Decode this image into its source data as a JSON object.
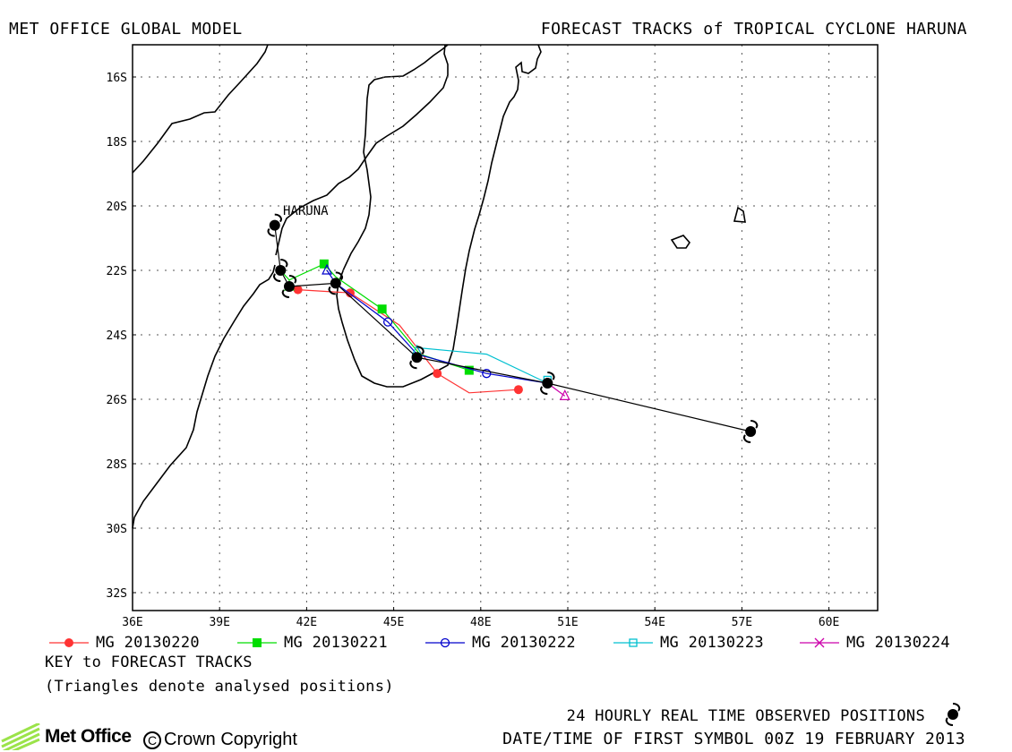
{
  "header": {
    "left_title": "MET OFFICE GLOBAL MODEL",
    "right_title": "FORECAST TRACKS of TROPICAL CYCLONE HARUNA"
  },
  "map": {
    "storm_label": "HARUNA",
    "lon_ticks": [
      "36E",
      "39E",
      "42E",
      "45E",
      "48E",
      "51E",
      "54E",
      "57E",
      "60E"
    ],
    "lat_ticks": [
      "16S",
      "18S",
      "20S",
      "22S",
      "24S",
      "26S",
      "28S",
      "30S",
      "32S"
    ],
    "colors": {
      "land_outline": "#000000",
      "grid": "#555555"
    }
  },
  "legend": {
    "items": [
      {
        "label": "MG 20130220",
        "marker": "filled-circle",
        "color": "#ff3333"
      },
      {
        "label": "MG 20130221",
        "marker": "filled-square",
        "color": "#00dd00"
      },
      {
        "label": "MG 20130222",
        "marker": "open-circle",
        "color": "#0000cc"
      },
      {
        "label": "MG 20130223",
        "marker": "open-square",
        "color": "#00c0d0"
      },
      {
        "label": "MG 20130224",
        "marker": "cross",
        "color": "#cc00aa"
      }
    ],
    "key_title": "KEY to FORECAST TRACKS",
    "key_note": "(Triangles denote analysed positions)"
  },
  "footer": {
    "observed_label": "24 HOURLY REAL TIME OBSERVED POSITIONS",
    "first_symbol_time": "DATE/TIME OF FIRST SYMBOL 00Z 19 FEBRUARY 2013",
    "logo_text": "Met Office",
    "copyright": "Crown Copyright"
  },
  "tracks": {
    "observed": [
      [
        40.9,
        -20.6
      ],
      [
        41.1,
        -22.0
      ],
      [
        41.4,
        -22.5
      ],
      [
        43.0,
        -22.4
      ],
      [
        45.8,
        -24.7
      ],
      [
        50.3,
        -25.5
      ],
      [
        57.3,
        -27.0
      ]
    ],
    "forecasts": [
      {
        "name": "MG 20130220",
        "color": "#ff3333",
        "marker": "filled-circle",
        "points": [
          [
            41.4,
            -22.5
          ],
          [
            41.7,
            -22.6
          ],
          [
            43.5,
            -22.7
          ],
          [
            45.2,
            -23.7
          ],
          [
            46.5,
            -25.2
          ],
          [
            47.6,
            -25.8
          ],
          [
            49.3,
            -25.7
          ]
        ],
        "marker_points": [
          [
            41.7,
            -22.6
          ],
          [
            43.5,
            -22.7
          ],
          [
            46.5,
            -25.2
          ],
          [
            49.3,
            -25.7
          ]
        ]
      },
      {
        "name": "MG 20130221",
        "color": "#00dd00",
        "marker": "filled-square",
        "points": [
          [
            41.1,
            -22.0
          ],
          [
            41.4,
            -22.3
          ],
          [
            42.6,
            -21.8
          ],
          [
            43.0,
            -22.2
          ],
          [
            44.6,
            -23.2
          ],
          [
            45.9,
            -24.6
          ],
          [
            47.6,
            -25.1
          ]
        ],
        "marker_points": [
          [
            42.6,
            -21.8
          ],
          [
            44.6,
            -23.2
          ],
          [
            47.6,
            -25.1
          ]
        ]
      },
      {
        "name": "MG 20130222",
        "color": "#0000cc",
        "marker": "open-circle",
        "points": [
          [
            42.7,
            -22.0
          ],
          [
            43.0,
            -22.4
          ],
          [
            44.8,
            -23.6
          ],
          [
            45.8,
            -24.6
          ],
          [
            48.2,
            -25.2
          ],
          [
            50.3,
            -25.5
          ]
        ],
        "marker_points": [
          [
            44.8,
            -23.6
          ],
          [
            48.2,
            -25.2
          ]
        ]
      },
      {
        "name": "MG 20130223",
        "color": "#00c0d0",
        "marker": "open-square",
        "points": [
          [
            45.8,
            -24.4
          ],
          [
            48.2,
            -24.6
          ],
          [
            50.3,
            -25.5
          ]
        ],
        "marker_points": [
          [
            50.3,
            -25.4
          ]
        ]
      },
      {
        "name": "MG 20130224",
        "color": "#cc00aa",
        "marker": "cross",
        "points": [
          [
            50.3,
            -25.5
          ],
          [
            50.9,
            -25.9
          ]
        ],
        "marker_points": []
      }
    ],
    "analysed_triangles": [
      [
        41.4,
        -22.5
      ],
      [
        42.7,
        -22.0
      ],
      [
        45.8,
        -24.5
      ],
      [
        50.9,
        -25.9
      ]
    ]
  }
}
